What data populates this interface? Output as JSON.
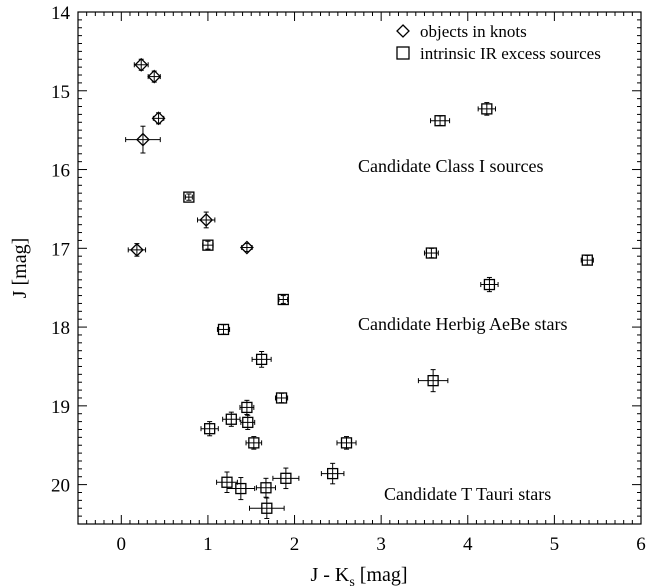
{
  "chart_data": {
    "type": "scatter",
    "xlabel": "J - K",
    "xlabel_sub": "s",
    "xlabel_suffix": " [mag]",
    "ylabel": "J [mag]",
    "xlim": [
      -0.5,
      6
    ],
    "ylim": [
      20.5,
      14
    ],
    "y_inverted": true,
    "x_ticks": [
      0,
      1,
      2,
      3,
      4,
      5,
      6
    ],
    "x_tick_labels": [
      "0",
      "1",
      "2",
      "3",
      "4",
      "5",
      "6"
    ],
    "y_ticks": [
      14,
      15,
      16,
      17,
      18,
      19,
      20
    ],
    "y_tick_labels": [
      "14",
      "15",
      "16",
      "17",
      "18",
      "19",
      "20"
    ],
    "legend": {
      "placement": "top-right",
      "entries": [
        {
          "marker": "diamond",
          "label": "objects in knots"
        },
        {
          "marker": "square",
          "label": "intrinsic IR excess sources"
        }
      ]
    },
    "annotations": [
      {
        "text": "Candidate Class I sources",
        "x": 3.0,
        "y": 16.0
      },
      {
        "text": "Candidate Herbig AeBe stars",
        "x": 3.0,
        "y": 18.0
      },
      {
        "text": "Candidate T Tauri stars",
        "x": 3.0,
        "y": 20.15
      }
    ],
    "series": [
      {
        "name": "objects in knots",
        "marker": "diamond",
        "points": [
          {
            "x": 0.23,
            "y": 14.67,
            "xerr": 0.08,
            "yerr": 0.07
          },
          {
            "x": 0.38,
            "y": 14.82,
            "xerr": 0.07,
            "yerr": 0.07
          },
          {
            "x": 0.43,
            "y": 15.35,
            "xerr": 0.06,
            "yerr": 0.07
          },
          {
            "x": 0.25,
            "y": 15.62,
            "xerr": 0.2,
            "yerr": 0.17
          },
          {
            "x": 0.98,
            "y": 16.64,
            "xerr": 0.1,
            "yerr": 0.1
          },
          {
            "x": 0.18,
            "y": 17.02,
            "xerr": 0.1,
            "yerr": 0.08
          },
          {
            "x": 1.45,
            "y": 16.99,
            "xerr": 0.06,
            "yerr": 0.05
          }
        ]
      },
      {
        "name": "intrinsic IR excess sources",
        "marker": "square",
        "points": [
          {
            "x": 0.78,
            "y": 16.35,
            "xerr": 0.04,
            "yerr": 0.04
          },
          {
            "x": 1.0,
            "y": 16.96,
            "xerr": 0.06,
            "yerr": 0.05
          },
          {
            "x": 3.68,
            "y": 15.38,
            "xerr": 0.11,
            "yerr": 0.06
          },
          {
            "x": 4.22,
            "y": 15.23,
            "xerr": 0.1,
            "yerr": 0.08
          },
          {
            "x": 3.58,
            "y": 17.06,
            "xerr": 0.08,
            "yerr": 0.06
          },
          {
            "x": 4.25,
            "y": 17.46,
            "xerr": 0.1,
            "yerr": 0.09
          },
          {
            "x": 5.38,
            "y": 17.15,
            "xerr": 0.07,
            "yerr": 0.06
          },
          {
            "x": 1.87,
            "y": 17.65,
            "xerr": 0.05,
            "yerr": 0.05
          },
          {
            "x": 1.18,
            "y": 18.03,
            "xerr": 0.07,
            "yerr": 0.06
          },
          {
            "x": 1.62,
            "y": 18.41,
            "xerr": 0.11,
            "yerr": 0.1
          },
          {
            "x": 3.6,
            "y": 18.68,
            "xerr": 0.17,
            "yerr": 0.14
          },
          {
            "x": 1.85,
            "y": 18.9,
            "xerr": 0.07,
            "yerr": 0.06
          },
          {
            "x": 1.45,
            "y": 19.02,
            "xerr": 0.08,
            "yerr": 0.09
          },
          {
            "x": 1.27,
            "y": 19.17,
            "xerr": 0.1,
            "yerr": 0.09
          },
          {
            "x": 1.46,
            "y": 19.21,
            "xerr": 0.08,
            "yerr": 0.09
          },
          {
            "x": 1.02,
            "y": 19.29,
            "xerr": 0.1,
            "yerr": 0.09
          },
          {
            "x": 1.53,
            "y": 19.47,
            "xerr": 0.09,
            "yerr": 0.08
          },
          {
            "x": 2.6,
            "y": 19.47,
            "xerr": 0.11,
            "yerr": 0.08
          },
          {
            "x": 2.44,
            "y": 19.86,
            "xerr": 0.13,
            "yerr": 0.13
          },
          {
            "x": 1.9,
            "y": 19.92,
            "xerr": 0.15,
            "yerr": 0.13
          },
          {
            "x": 1.22,
            "y": 19.97,
            "xerr": 0.12,
            "yerr": 0.13
          },
          {
            "x": 1.38,
            "y": 20.05,
            "xerr": 0.16,
            "yerr": 0.14
          },
          {
            "x": 1.67,
            "y": 20.04,
            "xerr": 0.11,
            "yerr": 0.12
          },
          {
            "x": 1.68,
            "y": 20.3,
            "xerr": 0.2,
            "yerr": 0.13
          }
        ]
      }
    ]
  }
}
